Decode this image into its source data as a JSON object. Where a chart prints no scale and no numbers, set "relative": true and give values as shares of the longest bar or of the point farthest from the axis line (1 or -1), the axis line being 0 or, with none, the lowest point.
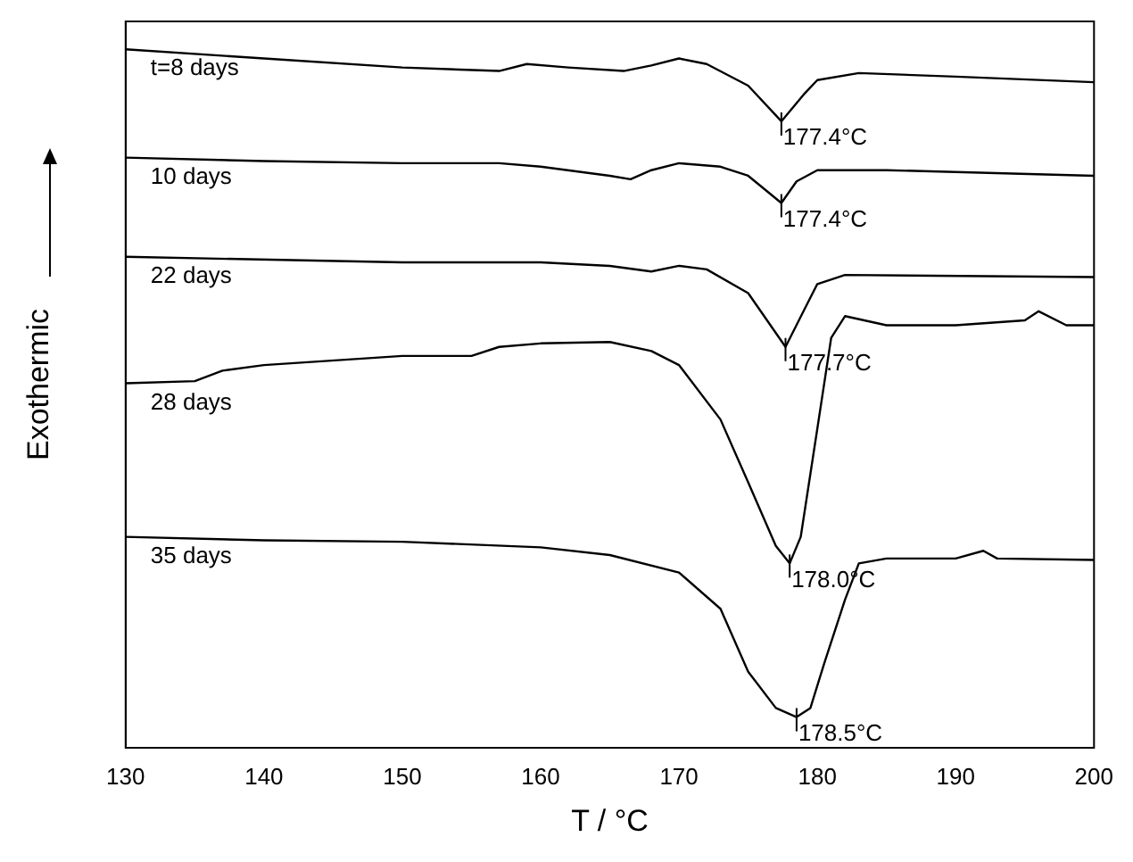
{
  "chart_data": {
    "type": "line",
    "relative": true,
    "xlabel": "T / °C",
    "ylabel": "Exothermic",
    "xlim": [
      130,
      200
    ],
    "xticks": [
      130,
      140,
      150,
      160,
      170,
      180,
      190,
      200
    ],
    "grid": false,
    "legend": false,
    "marker": "none",
    "line_style": "solid",
    "series": [
      {
        "name": "t=8 days",
        "color": "#000000",
        "x": [
          130,
          140,
          150,
          157,
          159,
          162,
          166,
          168,
          170,
          172,
          175,
          177.4,
          179,
          180,
          183,
          190,
          200
        ],
        "values": [
          1.0,
          0.987,
          0.974,
          0.969,
          0.979,
          0.974,
          0.969,
          0.977,
          0.987,
          0.979,
          0.948,
          0.897,
          0.935,
          0.956,
          0.966,
          0.961,
          0.953
        ]
      },
      {
        "name": "10 days",
        "color": "#000000",
        "x": [
          130,
          140,
          150,
          157,
          160,
          165,
          166.5,
          168,
          170,
          173,
          175,
          177.4,
          178.5,
          180,
          185,
          200
        ],
        "values": [
          0.845,
          0.84,
          0.837,
          0.837,
          0.832,
          0.819,
          0.814,
          0.827,
          0.837,
          0.832,
          0.819,
          0.78,
          0.811,
          0.827,
          0.827,
          0.819
        ]
      },
      {
        "name": "22 days",
        "color": "#000000",
        "x": [
          130,
          150,
          160,
          165,
          168,
          170,
          172,
          175,
          177.7,
          179,
          180,
          182,
          200
        ],
        "values": [
          0.703,
          0.695,
          0.695,
          0.69,
          0.682,
          0.69,
          0.685,
          0.651,
          0.574,
          0.625,
          0.664,
          0.677,
          0.674
        ]
      },
      {
        "name": "28 days",
        "color": "#000000",
        "x": [
          130,
          135,
          137,
          140,
          150,
          155,
          157,
          160,
          165,
          168,
          170,
          173,
          175,
          177,
          178,
          178.8,
          180,
          181,
          182,
          185,
          190,
          195,
          196,
          198,
          200
        ],
        "values": [
          0.522,
          0.525,
          0.54,
          0.548,
          0.561,
          0.561,
          0.574,
          0.579,
          0.581,
          0.568,
          0.548,
          0.47,
          0.38,
          0.289,
          0.264,
          0.302,
          0.457,
          0.587,
          0.618,
          0.605,
          0.605,
          0.612,
          0.625,
          0.605,
          0.605
        ]
      },
      {
        "name": "35 days",
        "color": "#000000",
        "x": [
          130,
          140,
          150,
          160,
          165,
          170,
          173,
          175,
          177,
          178.5,
          179.5,
          180.5,
          182,
          183,
          185,
          190,
          192,
          193,
          200
        ],
        "values": [
          0.302,
          0.297,
          0.295,
          0.287,
          0.276,
          0.251,
          0.199,
          0.109,
          0.057,
          0.044,
          0.057,
          0.121,
          0.212,
          0.264,
          0.271,
          0.271,
          0.282,
          0.271,
          0.269
        ]
      }
    ],
    "annotations": [
      {
        "text": "177.4°C",
        "x": 177.4,
        "y": 0.897
      },
      {
        "text": "177.4°C",
        "x": 177.4,
        "y": 0.78
      },
      {
        "text": "177.7°C",
        "x": 177.7,
        "y": 0.574
      },
      {
        "text": "178.0°C",
        "x": 178,
        "y": 0.264
      },
      {
        "text": "178.5°C",
        "x": 178.5,
        "y": 0.044
      }
    ]
  }
}
